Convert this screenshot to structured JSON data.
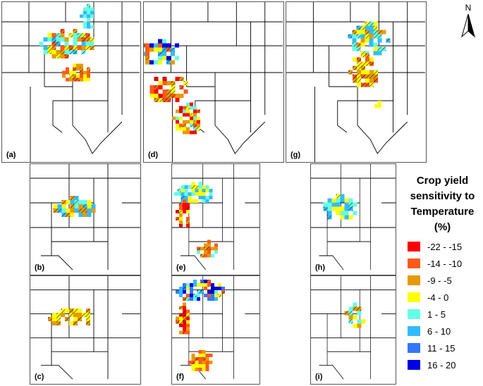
{
  "panels": [
    {
      "id": "a",
      "label": "(a)",
      "view": "wide"
    },
    {
      "id": "d",
      "label": "(d)",
      "view": "wide"
    },
    {
      "id": "g",
      "label": "(g)",
      "view": "wide"
    },
    {
      "id": "b",
      "label": "(b)",
      "view": "narrow"
    },
    {
      "id": "e",
      "label": "(e)",
      "view": "narrow"
    },
    {
      "id": "h",
      "label": "(h)",
      "view": "narrow"
    },
    {
      "id": "c",
      "label": "(c)",
      "view": "narrow"
    },
    {
      "id": "f",
      "label": "(f)",
      "view": "narrow"
    },
    {
      "id": "i",
      "label": "(i)",
      "view": "narrow"
    }
  ],
  "legend": {
    "title_lines": [
      "Crop yield",
      "sensitivity to",
      "Temperature",
      "(%)"
    ],
    "classes": [
      {
        "label": "-22 - -15",
        "color": "#ff0000"
      },
      {
        "label": "-14 - -10",
        "color": "#ff5a1a"
      },
      {
        "label": "-9 - -5",
        "color": "#e69a00"
      },
      {
        "label": "-4 - 0",
        "color": "#ffff00"
      },
      {
        "label": "1 - 5",
        "color": "#66ffe6"
      },
      {
        "label": "6 - 10",
        "color": "#33bbff"
      },
      {
        "label": "11 - 15",
        "color": "#3377ff"
      },
      {
        "label": "16 - 20",
        "color": "#0000e0"
      }
    ]
  },
  "north_arrow": {
    "letter": "N",
    "icon": "north-arrow-icon"
  },
  "colors": {
    "border": "#000000",
    "frame": "#555555",
    "hatch": "#000000"
  }
}
